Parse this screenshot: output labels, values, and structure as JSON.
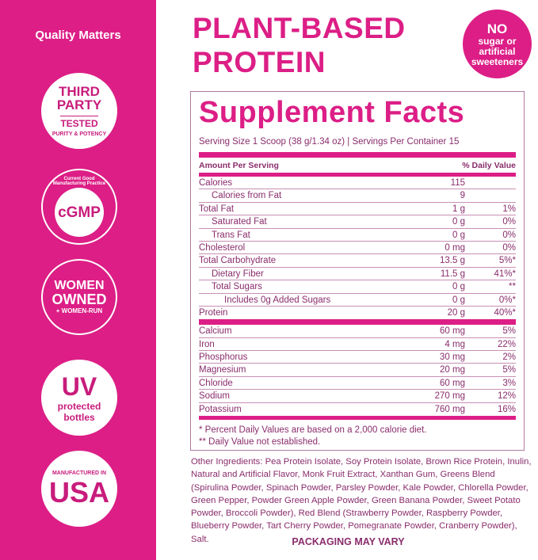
{
  "sidebar": {
    "heading": "Quality Matters",
    "badges": {
      "third_party": {
        "line1": "THIRD",
        "line2": "PARTY",
        "line3": "TESTED",
        "arc": "PURITY & POTENCY"
      },
      "cgmp": {
        "center": "cGMP",
        "arc": "Current Good Manufacturing Practice"
      },
      "women": {
        "line1": "WOMEN",
        "line2": "OWNED",
        "line3": "+ WOMEN-RUN"
      },
      "uv": {
        "line1": "UV",
        "line2": "protected",
        "line3": "bottles"
      },
      "usa": {
        "line1": "MANUFACTURED IN",
        "line2": "USA"
      }
    }
  },
  "header": {
    "title_line1": "PLANT-BASED",
    "title_line2": "PROTEIN",
    "badge": {
      "line1": "NO",
      "line2": "sugar or",
      "line3": "artificial",
      "line4": "sweeteners"
    }
  },
  "facts": {
    "title": "Supplement Facts",
    "serving": "Serving Size 1 Scoop (38 g/1.34 oz) | Servings Per Container 15",
    "col_amount": "Amount Per Serving",
    "col_dv": "% Daily Value",
    "rows": [
      {
        "name": "Calories",
        "amount": "115",
        "dv": ""
      },
      {
        "name": "Calories from Fat",
        "amount": "9",
        "dv": ""
      },
      {
        "name": "Total Fat",
        "amount": "1 g",
        "dv": "1%"
      },
      {
        "name": "Saturated Fat",
        "amount": "0 g",
        "dv": "0%"
      },
      {
        "name": "Trans Fat",
        "amount": "0 g",
        "dv": "0%"
      },
      {
        "name": "Cholesterol",
        "amount": "0 mg",
        "dv": "0%"
      },
      {
        "name": "Total Carbohydrate",
        "amount": "13.5 g",
        "dv": "5%*"
      },
      {
        "name": "Dietary Fiber",
        "amount": "11.5 g",
        "dv": "41%*"
      },
      {
        "name": "Total Sugars",
        "amount": "0 g",
        "dv": "**"
      },
      {
        "name": "Includes 0g Added Sugars",
        "amount": "0 g",
        "dv": "0%*"
      },
      {
        "name": "Protein",
        "amount": "20 g",
        "dv": "40%*"
      }
    ],
    "minerals": [
      {
        "name": "Calcium",
        "amount": "60 mg",
        "dv": "5%"
      },
      {
        "name": "Iron",
        "amount": "4 mg",
        "dv": "22%"
      },
      {
        "name": "Phosphorus",
        "amount": "30 mg",
        "dv": "2%"
      },
      {
        "name": "Magnesium",
        "amount": "20 mg",
        "dv": "5%"
      },
      {
        "name": "Chloride",
        "amount": "60 mg",
        "dv": "3%"
      },
      {
        "name": "Sodium",
        "amount": "270 mg",
        "dv": "12%"
      },
      {
        "name": "Potassium",
        "amount": "760 mg",
        "dv": "16%"
      }
    ],
    "footnote1": "* Percent Daily Values are based on a 2,000 calorie diet.",
    "footnote2": "** Daily Value not established."
  },
  "ingredients": "Other Ingredients: Pea Protein Isolate, Soy Protein Isolate, Brown Rice Protein, Inulin, Natural and Artificial Flavor, Monk Fruit Extract, Xanthan Gum, Greens Blend (Spirulina Powder, Spinach Powder, Parsley Powder, Kale Powder, Chlorella Powder, Green Pepper, Powder Green Apple Powder, Green Banana Powder, Sweet Potato Powder, Broccoli Powder), Red Blend (Strawberry Powder, Raspberry Powder, Blueberry Powder, Tart Cherry Powder, Pomegranate Powder, Cranberry Powder), Salt.",
  "packaging": "PACKAGING MAY VARY",
  "colors": {
    "brand": "#dc1e86",
    "text": "#8a2d6c"
  }
}
